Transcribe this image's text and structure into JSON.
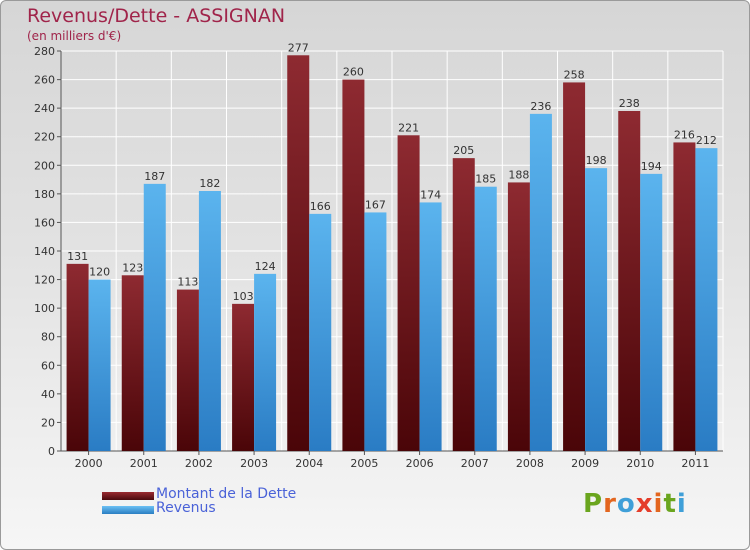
{
  "chart_data": {
    "type": "bar",
    "title": "Revenus/Dette - ASSIGNAN",
    "subtitle": "(en milliers d'€)",
    "categories": [
      "2000",
      "2001",
      "2002",
      "2003",
      "2004",
      "2005",
      "2006",
      "2007",
      "2008",
      "2009",
      "2010",
      "2011"
    ],
    "series": [
      {
        "name": "Montant de la Dette",
        "color": "#7a1f24",
        "values": [
          131,
          123,
          113,
          103,
          277,
          260,
          221,
          205,
          188,
          258,
          238,
          216
        ]
      },
      {
        "name": "Revenus",
        "color": "#4aa3e6",
        "values": [
          120,
          187,
          182,
          124,
          166,
          167,
          174,
          185,
          236,
          198,
          194,
          212
        ]
      }
    ],
    "ylim": [
      0,
      280
    ],
    "yticks": [
      0,
      20,
      40,
      60,
      80,
      100,
      120,
      140,
      160,
      180,
      200,
      220,
      240,
      260,
      280
    ],
    "grid": true,
    "legend": "bottom-left"
  },
  "brand": {
    "text": "Proxiti",
    "letter_colors": [
      "#6aa51e",
      "#e3661f",
      "#3f9fd8",
      "#e53d2a",
      "#e3661f",
      "#6aa51e",
      "#3f9fd8"
    ]
  }
}
